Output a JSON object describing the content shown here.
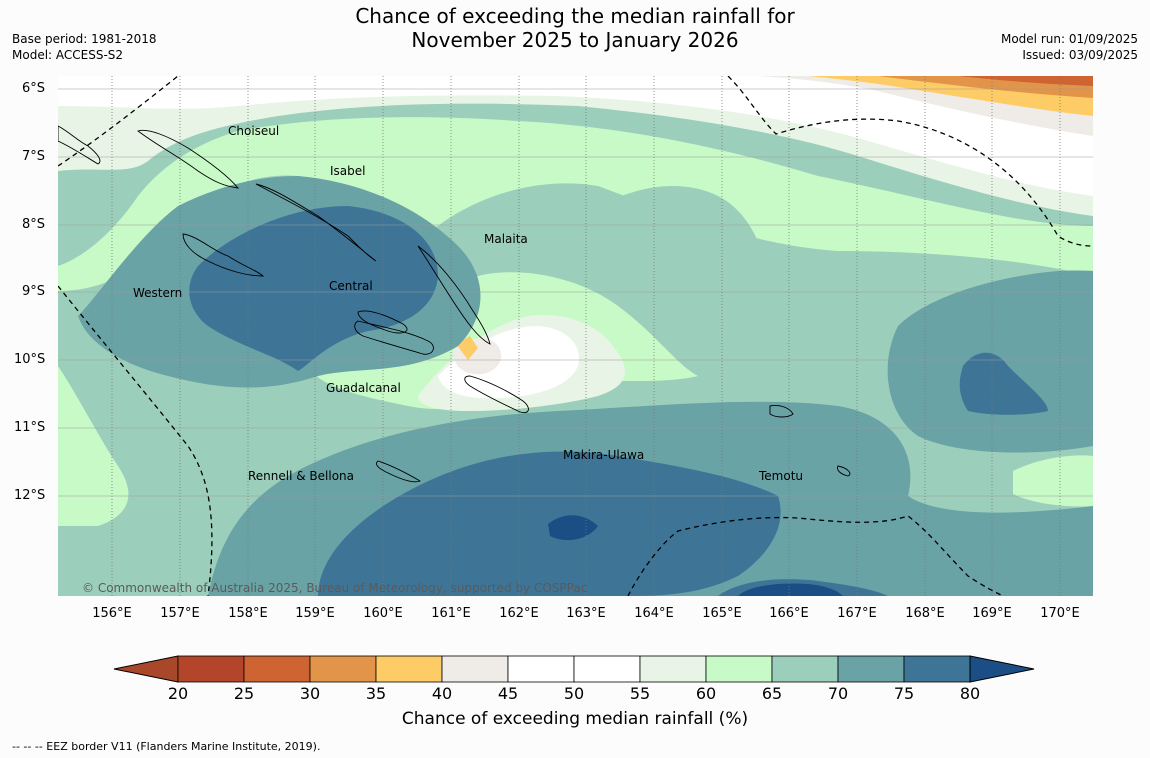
{
  "title_line1": "Chance of exceeding the median rainfall for",
  "title_line2": "November 2025 to January 2026",
  "meta_left": [
    "Base period: 1981-2018",
    "Model: ACCESS-S2"
  ],
  "meta_right": [
    "Model run: 01/09/2025",
    "Issued: 03/09/2025"
  ],
  "lat_labels": [
    "6°S",
    "7°S",
    "8°S",
    "9°S",
    "10°S",
    "11°S",
    "12°S"
  ],
  "lon_labels": [
    "156°E",
    "157°E",
    "158°E",
    "159°E",
    "160°E",
    "161°E",
    "162°E",
    "163°E",
    "164°E",
    "165°E",
    "166°E",
    "167°E",
    "168°E",
    "169°E",
    "170°E"
  ],
  "places": [
    {
      "name": "Choiseul"
    },
    {
      "name": "Isabel"
    },
    {
      "name": "Malaita"
    },
    {
      "name": "Western"
    },
    {
      "name": "Central"
    },
    {
      "name": "Guadalcanal"
    },
    {
      "name": "Makira-Ulawa"
    },
    {
      "name": "Rennell & Bellona"
    },
    {
      "name": "Temotu"
    }
  ],
  "copyright": "© Commonwealth of Australia 2025, Bureau of Meteorology, supported by COSPPac",
  "colorbar": {
    "title": "Chance of exceeding median rainfall (%)",
    "ticks": [
      "20",
      "25",
      "30",
      "35",
      "40",
      "45",
      "50",
      "55",
      "60",
      "65",
      "70",
      "75",
      "80"
    ],
    "colors": [
      "#a9472a",
      "#b3462a",
      "#cd6432",
      "#e29549",
      "#fecc66",
      "#efece8",
      "#ffffff",
      "#ffffff",
      "#e8f5e6",
      "#c8fac8",
      "#9ccfbb",
      "#6aa3a6",
      "#3e7597",
      "#1a4e85"
    ]
  },
  "eez_note": "--  --  -- EEZ border V11 (Flanders Marine Institute, 2019).",
  "colors": {
    "cat_55_60": "#e8f5e6",
    "cat_60_65": "#c8fac8",
    "cat_65_70": "#9ccfbb",
    "cat_70_75": "#6aa3a6",
    "cat_75_80": "#3e7597",
    "cat_80_plus": "#1a4e85",
    "cat_35_40": "#fecc66",
    "cat_30_35": "#e29549",
    "cat_25_30": "#cd6432",
    "cat_40_45": "#efece8"
  }
}
